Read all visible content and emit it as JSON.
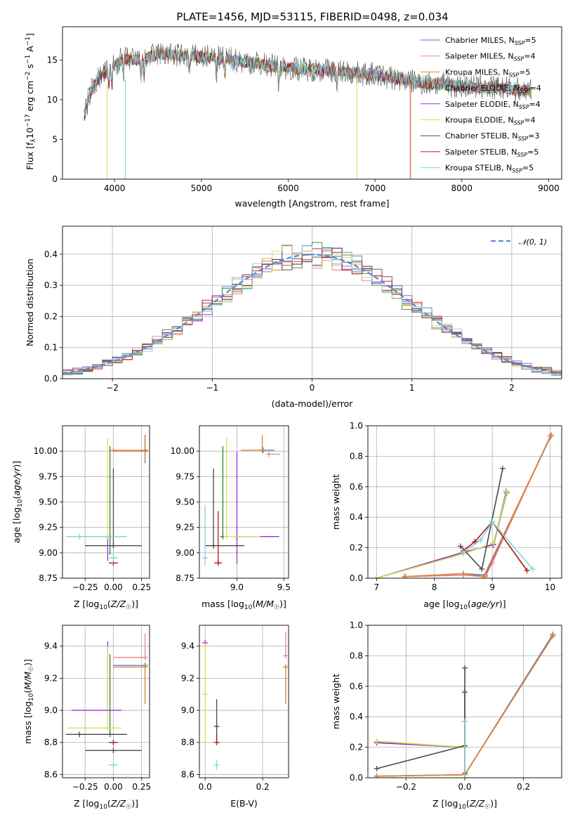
{
  "figure_title": "PLATE=1456, MJD=53115, FIBERID=0498, z=0.034",
  "colors": {
    "Chabrier MILES": "#4f74c9",
    "Salpeter MILES": "#e8868e",
    "Kroupa MILES": "#d9822b",
    "Chabrier ELODIE": "#3a7d3a",
    "Salpeter ELODIE": "#9b30c8",
    "Kroupa ELODIE": "#d4e05a",
    "Chabrier STELIB": "#4a4a4a",
    "Salpeter STELIB": "#b01818",
    "Kroupa STELIB": "#7fd6e0",
    "gauss": "#5b8ad6",
    "grid": "#b0b0b0"
  },
  "chart_data": [
    {
      "type": "line",
      "panel": "spectrum",
      "xlabel": "wavelength [Angstrom, rest frame]",
      "ylabel": "Flux [f_λ 10^-17 erg cm^-2 s^-1 A^-1]",
      "xlim": [
        3400,
        9150
      ],
      "ylim": [
        0,
        19.2
      ],
      "xticks": [
        4000,
        5000,
        6000,
        7000,
        8000,
        9000
      ],
      "yticks": [
        0,
        5,
        10,
        15
      ],
      "grid": false,
      "legend": "top-right",
      "series": [
        {
          "name": "Chabrier MILES",
          "nssp": "5"
        },
        {
          "name": "Salpeter MILES",
          "nssp": "4"
        },
        {
          "name": "Kroupa MILES",
          "nssp": "5"
        },
        {
          "name": "Chabrier ELODIE",
          "nssp": "4"
        },
        {
          "name": "Salpeter ELODIE",
          "nssp": "4"
        },
        {
          "name": "Kroupa ELODIE",
          "nssp": "4"
        },
        {
          "name": "Chabrier STELIB",
          "nssp": "3"
        },
        {
          "name": "Salpeter STELIB",
          "nssp": "5"
        },
        {
          "name": "Kroupa STELIB",
          "nssp": "5"
        }
      ],
      "continuum": [
        [
          3650,
          8.0
        ],
        [
          3720,
          11.0
        ],
        [
          3800,
          12.5
        ],
        [
          3950,
          14.0
        ],
        [
          4100,
          15.2
        ],
        [
          4300,
          15.0
        ],
        [
          4500,
          15.8
        ],
        [
          4800,
          15.5
        ],
        [
          5200,
          15.3
        ],
        [
          5500,
          14.8
        ],
        [
          6000,
          14.0
        ],
        [
          6500,
          13.7
        ],
        [
          7000,
          13.1
        ],
        [
          7500,
          12.2
        ],
        [
          8000,
          11.7
        ],
        [
          8500,
          11.4
        ],
        [
          8800,
          11.1
        ]
      ],
      "drops": [
        {
          "series": "Kroupa ELODIE",
          "x": 3915,
          "from": 12.0,
          "to": 0
        },
        {
          "series": "Kroupa STELIB",
          "x": 4125,
          "from": 12.5,
          "to": 0
        },
        {
          "series": "Kroupa ELODIE",
          "x": 6790,
          "from": 12.6,
          "to": 0
        },
        {
          "series": "Kroupa MILES",
          "x": 7410,
          "from": 12.0,
          "to": 0
        },
        {
          "series": "Salpeter MILES",
          "x": 7405,
          "from": 12.0,
          "to": 0
        }
      ]
    },
    {
      "type": "line",
      "panel": "residuals",
      "xlabel": "(data-model)/error",
      "ylabel": "Normed distribution",
      "xlim": [
        -2.5,
        2.5
      ],
      "ylim": [
        0,
        0.49
      ],
      "xticks": [
        -2,
        -1,
        0,
        1,
        2
      ],
      "yticks": [
        0.0,
        0.1,
        0.2,
        0.3,
        0.4
      ],
      "grid": true,
      "legend": "top-right",
      "legend_label": "𝒩(0, 1)",
      "bin_width": 0.1,
      "x_start": -2.5
    },
    {
      "type": "scatter",
      "panel": "age-vs-Z",
      "xlabel": "Z [log10(Z/Z☉)]",
      "ylabel": "age [log10(age/yr)]",
      "xlim": [
        -0.45,
        0.32
      ],
      "ylim": [
        8.75,
        10.25
      ],
      "xticks": [
        -0.25,
        0.0,
        0.25
      ],
      "yticks": [
        8.75,
        9.0,
        9.25,
        9.5,
        9.75,
        10.0
      ],
      "grid": true,
      "points": [
        {
          "series": "Chabrier MILES",
          "x": 0.28,
          "y": 10.01,
          "xerr": [
            0.0,
            0.0
          ],
          "yerr": [
            0.13,
            0.15
          ]
        },
        {
          "series": "Salpeter MILES",
          "x": 0.0,
          "y": 10.01,
          "xerr": [
            0.0,
            0.28
          ],
          "yerr": [
            0.0,
            0.0
          ]
        },
        {
          "series": "Kroupa MILES",
          "x": 0.28,
          "y": 10.0,
          "xerr": [
            0.28,
            0.0
          ],
          "yerr": [
            0.1,
            0.15
          ]
        },
        {
          "series": "Chabrier ELODIE",
          "x": -0.03,
          "y": 9.16,
          "xerr": [
            0.0,
            0.0
          ],
          "yerr": [
            0.18,
            0.89
          ]
        },
        {
          "series": "Salpeter ELODIE",
          "x": -0.05,
          "y": 9.16,
          "xerr": [
            0.0,
            0.0
          ],
          "yerr": [
            0.24,
            0.0
          ]
        },
        {
          "series": "Kroupa ELODIE",
          "x": -0.05,
          "y": 9.16,
          "xerr": [
            0.35,
            0.12
          ],
          "yerr": [
            0.0,
            0.97
          ]
        },
        {
          "series": "Chabrier STELIB",
          "x": 0.0,
          "y": 9.07,
          "xerr": [
            0.25,
            0.25
          ],
          "yerr": [
            0.0,
            0.76
          ]
        },
        {
          "series": "Salpeter STELIB",
          "x": 0.0,
          "y": 8.9,
          "xerr": [
            0.04,
            0.04
          ],
          "yerr": [
            0.0,
            0.0
          ]
        },
        {
          "series": "Kroupa STELIB",
          "x": 0.0,
          "y": 8.95,
          "xerr": [
            0.04,
            0.04
          ],
          "yerr": [
            0.05,
            0.05
          ]
        },
        {
          "series": "Kroupa STELIB",
          "x": -0.3,
          "y": 9.16,
          "xerr": [
            0.12,
            0.42
          ],
          "yerr": [
            0.0,
            0.0
          ]
        }
      ]
    },
    {
      "type": "scatter",
      "panel": "age-vs-mass",
      "xlabel": "mass [log10(M/M☉)]",
      "ylabel": "",
      "xlim": [
        8.6,
        9.55
      ],
      "ylim": [
        8.75,
        10.25
      ],
      "xticks": [
        9.0,
        9.5
      ],
      "yticks": [
        8.75,
        9.0,
        9.25,
        9.5,
        9.75,
        10.0
      ],
      "grid": true,
      "points": [
        {
          "series": "Chabrier MILES",
          "x": 9.28,
          "y": 10.01,
          "xerr": [
            0.0,
            0.12
          ],
          "yerr": [
            0.0,
            0.0
          ]
        },
        {
          "series": "Salpeter MILES",
          "x": 9.34,
          "y": 9.97,
          "xerr": [
            0.0,
            0.12
          ],
          "yerr": [
            0.0,
            0.0
          ]
        },
        {
          "series": "Kroupa MILES",
          "x": 9.27,
          "y": 10.01,
          "xerr": [
            0.23,
            0.0
          ],
          "yerr": [
            0.0,
            0.15
          ]
        },
        {
          "series": "Chabrier ELODIE",
          "x": 8.85,
          "y": 9.16,
          "xerr": [
            0.0,
            0.0
          ],
          "yerr": [
            0.0,
            0.89
          ]
        },
        {
          "series": "Salpeter ELODIE",
          "x": 9.0,
          "y": 9.16,
          "xerr": [
            0.0,
            0.45
          ],
          "yerr": [
            0.27,
            0.83
          ]
        },
        {
          "series": "Kroupa ELODIE",
          "x": 8.89,
          "y": 9.16,
          "xerr": [
            0.0,
            0.36
          ],
          "yerr": [
            0.0,
            0.97
          ]
        },
        {
          "series": "Chabrier STELIB",
          "x": 8.75,
          "y": 9.07,
          "xerr": [
            0.09,
            0.33
          ],
          "yerr": [
            0.0,
            0.76
          ]
        },
        {
          "series": "Salpeter STELIB",
          "x": 8.8,
          "y": 8.9,
          "xerr": [
            0.04,
            0.04
          ],
          "yerr": [
            0.0,
            0.51
          ]
        },
        {
          "series": "Kroupa STELIB",
          "x": 8.66,
          "y": 8.95,
          "xerr": [
            0.0,
            0.0
          ],
          "yerr": [
            0.08,
            0.52
          ]
        }
      ]
    },
    {
      "type": "line",
      "panel": "weight-vs-age",
      "xlabel": "age [log10(age/yr)]",
      "ylabel": "mass weight",
      "xlim": [
        6.85,
        10.2
      ],
      "ylim": [
        0,
        1.0
      ],
      "xticks": [
        7,
        8,
        9,
        10
      ],
      "yticks": [
        0.0,
        0.2,
        0.4,
        0.6,
        0.8,
        1.0
      ],
      "grid": true,
      "series": [
        {
          "name": "Chabrier MILES",
          "x": [
            7.5,
            8.5,
            8.88,
            10.01
          ],
          "y": [
            0.01,
            0.03,
            0.02,
            0.93
          ]
        },
        {
          "name": "Salpeter MILES",
          "x": [
            7.5,
            8.5,
            8.88,
            9.0,
            10.0
          ],
          "y": [
            0.01,
            0.02,
            0.01,
            0.1,
            0.93
          ]
        },
        {
          "name": "Kroupa MILES",
          "x": [
            7.48,
            8.5,
            8.85,
            10.02
          ],
          "y": [
            0.01,
            0.03,
            0.01,
            0.94
          ]
        },
        {
          "name": "Chabrier ELODIE",
          "x": [
            7.0,
            8.5,
            9.02,
            9.25
          ],
          "y": [
            0.0,
            0.17,
            0.22,
            0.56
          ]
        },
        {
          "name": "Salpeter ELODIE",
          "x": [
            7.0,
            8.5,
            9.02,
            9.24
          ],
          "y": [
            0.0,
            0.17,
            0.22,
            0.57
          ]
        },
        {
          "name": "Kroupa ELODIE",
          "x": [
            7.0,
            8.5,
            9.02,
            9.25
          ],
          "y": [
            0.0,
            0.16,
            0.23,
            0.57
          ]
        },
        {
          "name": "Chabrier STELIB",
          "x": [
            8.45,
            8.82,
            9.18
          ],
          "y": [
            0.21,
            0.06,
            0.72
          ]
        },
        {
          "name": "Salpeter STELIB",
          "x": [
            8.5,
            8.7,
            9.0,
            9.6
          ],
          "y": [
            0.18,
            0.24,
            0.37,
            0.05
          ]
        },
        {
          "name": "Kroupa STELIB",
          "x": [
            8.5,
            8.8,
            9.0,
            9.7
          ],
          "y": [
            0.17,
            0.25,
            0.37,
            0.06
          ]
        }
      ]
    },
    {
      "type": "scatter",
      "panel": "mass-vs-Z",
      "xlabel": "Z [log10(Z/Z☉)]",
      "ylabel": "mass [log10(M/M☉)]",
      "xlim": [
        -0.45,
        0.32
      ],
      "ylim": [
        8.58,
        9.53
      ],
      "xticks": [
        -0.25,
        0.0,
        0.25
      ],
      "yticks": [
        8.6,
        8.8,
        9.0,
        9.2,
        9.4
      ],
      "grid": true,
      "points": [
        {
          "series": "Chabrier MILES",
          "x": 0.28,
          "y": 9.28,
          "xerr": [
            0.28,
            0.0
          ],
          "yerr": [
            0.0,
            0.0
          ]
        },
        {
          "series": "Salpeter MILES",
          "x": 0.28,
          "y": 9.33,
          "xerr": [
            0.28,
            0.0
          ],
          "yerr": [
            0.0,
            0.15
          ]
        },
        {
          "series": "Kroupa MILES",
          "x": 0.28,
          "y": 9.27,
          "xerr": [
            0.28,
            0.0
          ],
          "yerr": [
            0.23,
            0.0
          ]
        },
        {
          "series": "Chabrier ELODIE",
          "x": -0.03,
          "y": 8.85,
          "xerr": [
            0.0,
            0.0
          ],
          "yerr": [
            0.0,
            0.5
          ]
        },
        {
          "series": "Salpeter ELODIE",
          "x": -0.05,
          "y": 9.0,
          "xerr": [
            0.32,
            0.12
          ],
          "yerr": [
            0.0,
            0.43
          ]
        },
        {
          "series": "Kroupa ELODIE",
          "x": -0.05,
          "y": 8.89,
          "xerr": [
            0.35,
            0.12
          ],
          "yerr": [
            0.0,
            0.51
          ]
        },
        {
          "series": "Chabrier STELIB",
          "x": 0.0,
          "y": 8.75,
          "xerr": [
            0.25,
            0.25
          ],
          "yerr": [
            0.0,
            0.0
          ]
        },
        {
          "series": "Chabrier STELIB",
          "x": -0.3,
          "y": 8.85,
          "xerr": [
            0.12,
            0.42
          ],
          "yerr": [
            0.0,
            0.0
          ]
        },
        {
          "series": "Salpeter STELIB",
          "x": 0.0,
          "y": 8.8,
          "xerr": [
            0.04,
            0.04
          ],
          "yerr": [
            0.0,
            0.0
          ]
        },
        {
          "series": "Kroupa STELIB",
          "x": 0.0,
          "y": 8.66,
          "xerr": [
            0.04,
            0.04
          ],
          "yerr": [
            0.0,
            0.0
          ]
        }
      ]
    },
    {
      "type": "scatter",
      "panel": "mass-vs-EBV",
      "xlabel": "E(B-V)",
      "ylabel": "",
      "xlim": [
        -0.02,
        0.29
      ],
      "ylim": [
        8.58,
        9.53
      ],
      "xticks": [
        0.0,
        0.2
      ],
      "yticks": [
        8.6,
        8.8,
        9.0,
        9.2,
        9.4
      ],
      "grid": true,
      "points": [
        {
          "series": "Salpeter MILES",
          "x": 0.28,
          "y": 9.34,
          "xerr": [
            0.0,
            0.0
          ],
          "yerr": [
            0.0,
            0.15
          ]
        },
        {
          "series": "Kroupa MILES",
          "x": 0.28,
          "y": 9.27,
          "xerr": [
            0.0,
            0.0
          ],
          "yerr": [
            0.23,
            0.0
          ]
        },
        {
          "series": "Salpeter ELODIE",
          "x": 0.0,
          "y": 9.42,
          "xerr": [
            0.0,
            0.0
          ],
          "yerr": [
            0.02,
            0.02
          ]
        },
        {
          "series": "Kroupa ELODIE",
          "x": 0.0,
          "y": 9.1,
          "xerr": [
            0.0,
            0.0
          ],
          "yerr": [
            0.32,
            0.32
          ]
        },
        {
          "series": "Chabrier STELIB",
          "x": 0.04,
          "y": 8.9,
          "xerr": [
            0.0,
            0.0
          ],
          "yerr": [
            0.1,
            0.17
          ]
        },
        {
          "series": "Salpeter STELIB",
          "x": 0.04,
          "y": 8.8,
          "xerr": [
            0.0,
            0.0
          ],
          "yerr": [
            0.0,
            0.06
          ]
        },
        {
          "series": "Kroupa STELIB",
          "x": 0.04,
          "y": 8.66,
          "xerr": [
            0.0,
            0.0
          ],
          "yerr": [
            0.03,
            0.03
          ]
        }
      ]
    },
    {
      "type": "line",
      "panel": "weight-vs-Z",
      "xlabel": "Z [log10(Z/Z☉)]",
      "ylabel": "mass weight",
      "xlim": [
        -0.33,
        0.33
      ],
      "ylim": [
        0,
        1.0
      ],
      "xticks": [
        -0.2,
        0.0,
        0.2
      ],
      "yticks": [
        0.0,
        0.2,
        0.4,
        0.6,
        0.8,
        1.0
      ],
      "grid": true,
      "series": [
        {
          "name": "Chabrier MILES",
          "x": [
            -0.3,
            0.0,
            0.3
          ],
          "y": [
            0.01,
            0.02,
            0.94
          ]
        },
        {
          "name": "Salpeter MILES",
          "x": [
            -0.3,
            0.0,
            0.3
          ],
          "y": [
            0.01,
            0.02,
            0.93
          ]
        },
        {
          "name": "Kroupa MILES",
          "x": [
            -0.3,
            0.0,
            0.3
          ],
          "y": [
            0.01,
            0.02,
            0.93
          ]
        },
        {
          "name": "Chabrier ELODIE",
          "x": [
            -0.3,
            0.0,
            0.0
          ],
          "y": [
            0.23,
            0.2,
            0.56
          ]
        },
        {
          "name": "Salpeter ELODIE",
          "x": [
            -0.3,
            0.0,
            0.0
          ],
          "y": [
            0.23,
            0.2,
            0.56
          ]
        },
        {
          "name": "Kroupa ELODIE",
          "x": [
            -0.3,
            0.0,
            0.0
          ],
          "y": [
            0.24,
            0.2,
            0.57
          ]
        },
        {
          "name": "Chabrier STELIB",
          "x": [
            -0.3,
            0.0,
            0.0
          ],
          "y": [
            0.06,
            0.21,
            0.72
          ]
        },
        {
          "name": "Salpeter STELIB",
          "x": [
            0.0,
            0.0
          ],
          "y": [
            0.03,
            0.37
          ]
        },
        {
          "name": "Kroupa STELIB",
          "x": [
            0.0,
            0.0
          ],
          "y": [
            0.0,
            0.37
          ]
        }
      ]
    }
  ]
}
